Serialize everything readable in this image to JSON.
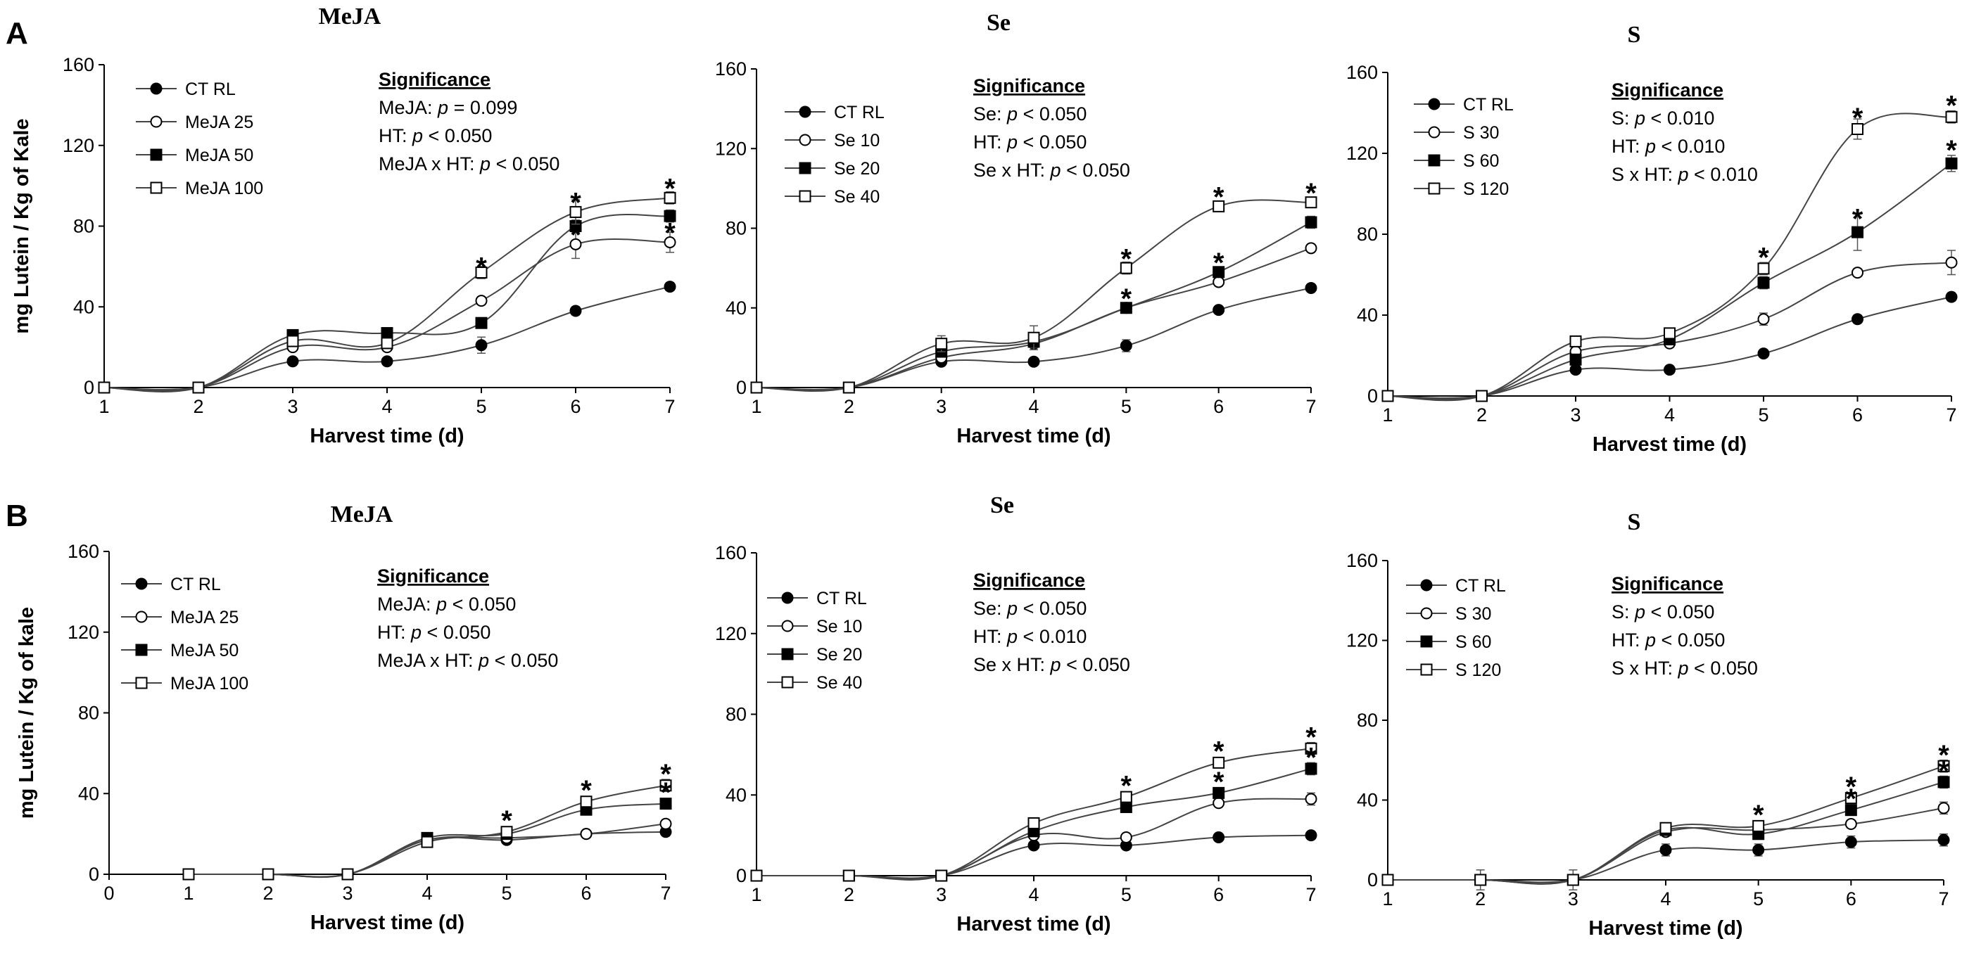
{
  "panel_labels": [
    "A",
    "B"
  ],
  "chart_data": [
    {
      "id": "A-MeJA",
      "type": "line",
      "title": "MeJA",
      "xlabel": "Harvest time (d)",
      "ylabel": "mg Lutein / Kg of Kale",
      "xlim": [
        1,
        7
      ],
      "ylim": [
        0,
        160
      ],
      "xticks": [
        1,
        2,
        3,
        4,
        5,
        6,
        7
      ],
      "yticks": [
        0,
        40,
        80,
        120,
        160
      ],
      "significance": {
        "heading": "Significance",
        "lines": [
          {
            "prefix": "MeJA: ",
            "p": "p",
            "suffix": " = 0.099"
          },
          {
            "prefix": "HT: ",
            "p": "p",
            "suffix": " < 0.050"
          },
          {
            "prefix": "MeJA x HT: ",
            "p": "p",
            "suffix": " < 0.050"
          }
        ]
      },
      "series": [
        {
          "name": "CT RL",
          "marker": "filled-circle",
          "x": [
            1,
            2,
            3,
            4,
            5,
            6,
            7
          ],
          "values": [
            0,
            0,
            13,
            13,
            21,
            38,
            50
          ],
          "errors": [
            0,
            0,
            1,
            1,
            4,
            2,
            2
          ]
        },
        {
          "name": "MeJA 25",
          "marker": "open-circle",
          "x": [
            1,
            2,
            3,
            4,
            5,
            6,
            7
          ],
          "values": [
            0,
            0,
            20,
            20,
            43,
            71,
            72
          ],
          "errors": [
            0,
            0,
            1,
            1,
            2,
            7,
            5
          ]
        },
        {
          "name": "MeJA 50",
          "marker": "filled-square",
          "x": [
            1,
            2,
            3,
            4,
            5,
            6,
            7
          ],
          "values": [
            0,
            0,
            26,
            27,
            32,
            80,
            85
          ],
          "errors": [
            0,
            0,
            1,
            1,
            2,
            3,
            3
          ]
        },
        {
          "name": "MeJA 100",
          "marker": "open-square",
          "x": [
            1,
            2,
            3,
            4,
            5,
            6,
            7
          ],
          "values": [
            0,
            0,
            23,
            22,
            57,
            87,
            94
          ],
          "errors": [
            0,
            0,
            1,
            2,
            3,
            6,
            3
          ]
        }
      ],
      "significance_markers": [
        {
          "x": 5,
          "y": 57,
          "label": "*"
        },
        {
          "x": 6,
          "y": 89,
          "label": "*"
        },
        {
          "x": 6,
          "y": 73,
          "label": "*"
        },
        {
          "x": 7,
          "y": 96,
          "label": "*"
        },
        {
          "x": 7,
          "y": 74,
          "label": "*"
        }
      ]
    },
    {
      "id": "A-Se",
      "type": "line",
      "title": "Se",
      "xlabel": "Harvest time (d)",
      "ylabel": "",
      "xlim": [
        1,
        7
      ],
      "ylim": [
        0,
        160
      ],
      "xticks": [
        1,
        2,
        3,
        4,
        5,
        6,
        7
      ],
      "yticks": [
        0,
        40,
        80,
        120,
        160
      ],
      "significance": {
        "heading": "Significance",
        "lines": [
          {
            "prefix": "Se: ",
            "p": "p",
            "suffix": " < 0.050"
          },
          {
            "prefix": "HT: ",
            "p": "p",
            "suffix": " < 0.050"
          },
          {
            "prefix": "Se x HT: ",
            "p": "p",
            "suffix": " < 0.050"
          }
        ]
      },
      "series": [
        {
          "name": "CT RL",
          "marker": "filled-circle",
          "x": [
            1,
            2,
            3,
            4,
            5,
            6,
            7
          ],
          "values": [
            0,
            0,
            13,
            13,
            21,
            39,
            50
          ],
          "errors": [
            0,
            0,
            1,
            1,
            3,
            1,
            2
          ]
        },
        {
          "name": "Se 10",
          "marker": "open-circle",
          "x": [
            1,
            2,
            3,
            4,
            5,
            6,
            7
          ],
          "values": [
            0,
            0,
            15,
            22,
            40,
            53,
            70
          ],
          "errors": [
            0,
            0,
            2,
            3,
            2,
            2,
            2
          ]
        },
        {
          "name": "Se 20",
          "marker": "filled-square",
          "x": [
            1,
            2,
            3,
            4,
            5,
            6,
            7
          ],
          "values": [
            0,
            0,
            18,
            23,
            40,
            58,
            83
          ],
          "errors": [
            0,
            0,
            2,
            3,
            2,
            2,
            3
          ]
        },
        {
          "name": "Se 40",
          "marker": "open-square",
          "x": [
            1,
            2,
            3,
            4,
            5,
            6,
            7
          ],
          "values": [
            0,
            0,
            22,
            25,
            60,
            91,
            93
          ],
          "errors": [
            0,
            0,
            4,
            6,
            3,
            2,
            2
          ]
        }
      ],
      "significance_markers": [
        {
          "x": 5,
          "y": 62,
          "label": "*"
        },
        {
          "x": 5,
          "y": 42,
          "label": "*"
        },
        {
          "x": 6,
          "y": 93,
          "label": "*"
        },
        {
          "x": 6,
          "y": 60,
          "label": "*"
        },
        {
          "x": 7,
          "y": 95,
          "label": "*"
        }
      ]
    },
    {
      "id": "A-S",
      "type": "line",
      "title": "S",
      "xlabel": "Harvest time (d)",
      "ylabel": "",
      "xlim": [
        1,
        7
      ],
      "ylim": [
        0,
        160
      ],
      "xticks": [
        1,
        2,
        3,
        4,
        5,
        6,
        7
      ],
      "yticks": [
        0,
        40,
        80,
        120,
        160
      ],
      "significance": {
        "heading": "Significance",
        "lines": [
          {
            "prefix": "S: ",
            "p": "p",
            "suffix": " < 0.010"
          },
          {
            "prefix": "HT: ",
            "p": "p",
            "suffix": " < 0.010"
          },
          {
            "prefix": "S x HT: ",
            "p": "p",
            "suffix": " < 0.010"
          }
        ]
      },
      "series": [
        {
          "name": "CT RL",
          "marker": "filled-circle",
          "x": [
            1,
            2,
            3,
            4,
            5,
            6,
            7
          ],
          "values": [
            0,
            0,
            13,
            13,
            21,
            38,
            49
          ],
          "errors": [
            0,
            0,
            1,
            1,
            1,
            2,
            2
          ]
        },
        {
          "name": "S 30",
          "marker": "open-circle",
          "x": [
            1,
            2,
            3,
            4,
            5,
            6,
            7
          ],
          "values": [
            0,
            0,
            22,
            26,
            38,
            61,
            66
          ],
          "errors": [
            0,
            0,
            2,
            2,
            3,
            2,
            6
          ]
        },
        {
          "name": "S 60",
          "marker": "filled-square",
          "x": [
            1,
            2,
            3,
            4,
            5,
            6,
            7
          ],
          "values": [
            0,
            0,
            18,
            28,
            56,
            81,
            115
          ],
          "errors": [
            0,
            0,
            2,
            2,
            3,
            9,
            4
          ]
        },
        {
          "name": "S 120",
          "marker": "open-square",
          "x": [
            1,
            2,
            3,
            4,
            5,
            6,
            7
          ],
          "values": [
            0,
            0,
            27,
            31,
            63,
            132,
            138
          ],
          "errors": [
            0,
            0,
            2,
            2,
            3,
            5,
            3
          ]
        }
      ],
      "significance_markers": [
        {
          "x": 5,
          "y": 66,
          "label": "*"
        },
        {
          "x": 6,
          "y": 135,
          "label": "*"
        },
        {
          "x": 6,
          "y": 85,
          "label": "*"
        },
        {
          "x": 7,
          "y": 141,
          "label": "*"
        },
        {
          "x": 7,
          "y": 119,
          "label": "*"
        }
      ]
    },
    {
      "id": "B-MeJA",
      "type": "line",
      "title": "MeJA",
      "xlabel": "Harvest time (d)",
      "ylabel": "mg Lutein / Kg of kale",
      "xlim": [
        0,
        7
      ],
      "ylim": [
        0,
        160
      ],
      "xticks": [
        0,
        1,
        2,
        3,
        4,
        5,
        6,
        7
      ],
      "yticks": [
        0,
        40,
        80,
        120,
        160
      ],
      "significance": {
        "heading": "Significance",
        "lines": [
          {
            "prefix": "MeJA: ",
            "p": "p",
            "suffix": " < 0.050"
          },
          {
            "prefix": "HT: ",
            "p": "p",
            "suffix": " < 0.050"
          },
          {
            "prefix": "MeJA x HT: ",
            "p": "p",
            "suffix": " < 0.050"
          }
        ]
      },
      "series": [
        {
          "name": "CT RL",
          "marker": "filled-circle",
          "x": [
            1,
            2,
            3,
            4,
            5,
            6,
            7
          ],
          "values": [
            0,
            0,
            0,
            17,
            17,
            20,
            21
          ],
          "errors": [
            0,
            0,
            0,
            1,
            1,
            1,
            2
          ]
        },
        {
          "name": "MeJA 25",
          "marker": "open-circle",
          "x": [
            1,
            2,
            3,
            4,
            5,
            6,
            7
          ],
          "values": [
            0,
            0,
            0,
            17,
            18,
            20,
            25
          ],
          "errors": [
            0,
            0,
            0,
            1,
            1,
            1,
            2
          ]
        },
        {
          "name": "MeJA 50",
          "marker": "filled-square",
          "x": [
            1,
            2,
            3,
            4,
            5,
            6,
            7
          ],
          "values": [
            0,
            0,
            0,
            18,
            20,
            32,
            35
          ],
          "errors": [
            0,
            0,
            0,
            1,
            1,
            2,
            2
          ]
        },
        {
          "name": "MeJA 100",
          "marker": "open-square",
          "x": [
            1,
            2,
            3,
            4,
            5,
            6,
            7
          ],
          "values": [
            0,
            0,
            0,
            16,
            21,
            36,
            44
          ],
          "errors": [
            0,
            0,
            0,
            1,
            1,
            2,
            3
          ]
        }
      ],
      "significance_markers": [
        {
          "x": 5,
          "y": 24,
          "label": "*"
        },
        {
          "x": 6,
          "y": 39,
          "label": "*"
        },
        {
          "x": 7,
          "y": 47,
          "label": "*"
        },
        {
          "x": 7,
          "y": 38,
          "label": "*"
        }
      ]
    },
    {
      "id": "B-Se",
      "type": "line",
      "title": "Se",
      "xlabel": "Harvest time (d)",
      "ylabel": "",
      "xlim": [
        1,
        7
      ],
      "ylim": [
        0,
        160
      ],
      "xticks": [
        1,
        2,
        3,
        4,
        5,
        6,
        7
      ],
      "yticks": [
        0,
        40,
        80,
        120,
        160
      ],
      "significance": {
        "heading": "Significance",
        "lines": [
          {
            "prefix": "Se: ",
            "p": "p",
            "suffix": " < 0.050"
          },
          {
            "prefix": "HT: ",
            "p": "p",
            "suffix": " < 0.010"
          },
          {
            "prefix": "Se x HT: ",
            "p": "p",
            "suffix": " < 0.050"
          }
        ]
      },
      "series": [
        {
          "name": "CT RL",
          "marker": "filled-circle",
          "x": [
            1,
            2,
            3,
            4,
            5,
            6,
            7
          ],
          "values": [
            0,
            0,
            0,
            15,
            15,
            19,
            20
          ],
          "errors": [
            0,
            0,
            0,
            1,
            1,
            1,
            2
          ]
        },
        {
          "name": "Se 10",
          "marker": "open-circle",
          "x": [
            1,
            2,
            3,
            4,
            5,
            6,
            7
          ],
          "values": [
            0,
            0,
            0,
            20,
            19,
            36,
            38
          ],
          "errors": [
            0,
            0,
            0,
            1,
            1,
            2,
            3
          ]
        },
        {
          "name": "Se 20",
          "marker": "filled-square",
          "x": [
            1,
            2,
            3,
            4,
            5,
            6,
            7
          ],
          "values": [
            0,
            0,
            0,
            22,
            34,
            41,
            53
          ],
          "errors": [
            0,
            0,
            0,
            1,
            2,
            2,
            3
          ]
        },
        {
          "name": "Se 40",
          "marker": "open-square",
          "x": [
            1,
            2,
            3,
            4,
            5,
            6,
            7
          ],
          "values": [
            0,
            0,
            0,
            26,
            39,
            56,
            63
          ],
          "errors": [
            0,
            0,
            0,
            1,
            2,
            2,
            3
          ]
        }
      ],
      "significance_markers": [
        {
          "x": 5,
          "y": 42,
          "label": "*"
        },
        {
          "x": 6,
          "y": 59,
          "label": "*"
        },
        {
          "x": 6,
          "y": 44,
          "label": "*"
        },
        {
          "x": 7,
          "y": 66,
          "label": "*"
        },
        {
          "x": 7,
          "y": 56,
          "label": "*"
        }
      ]
    },
    {
      "id": "B-S",
      "type": "line",
      "title": "S",
      "xlabel": "Harvest time (d)",
      "ylabel": "",
      "xlim": [
        1,
        7
      ],
      "ylim": [
        0,
        160
      ],
      "xticks": [
        1,
        2,
        3,
        4,
        5,
        6,
        7
      ],
      "yticks": [
        0,
        40,
        80,
        120,
        160
      ],
      "significance": {
        "heading": "Significance",
        "lines": [
          {
            "prefix": "S: ",
            "p": "p",
            "suffix": " < 0.050"
          },
          {
            "prefix": "HT: ",
            "p": "p",
            "suffix": " < 0.050"
          },
          {
            "prefix": "S x HT: ",
            "p": "p",
            "suffix": " < 0.050"
          }
        ]
      },
      "series": [
        {
          "name": "CT RL",
          "marker": "filled-circle",
          "x": [
            1,
            2,
            3,
            4,
            5,
            6,
            7
          ],
          "values": [
            0,
            0,
            0,
            15,
            15,
            19,
            20
          ],
          "errors": [
            0,
            5,
            5,
            3,
            3,
            3,
            3
          ]
        },
        {
          "name": "S 30",
          "marker": "open-circle",
          "x": [
            1,
            2,
            3,
            4,
            5,
            6,
            7
          ],
          "values": [
            0,
            0,
            0,
            24,
            25,
            28,
            36
          ],
          "errors": [
            0,
            0,
            0,
            2,
            2,
            2,
            3
          ]
        },
        {
          "name": "S 60",
          "marker": "filled-square",
          "x": [
            1,
            2,
            3,
            4,
            5,
            6,
            7
          ],
          "values": [
            0,
            0,
            0,
            25,
            23,
            35,
            49
          ],
          "errors": [
            0,
            0,
            0,
            2,
            2,
            2,
            3
          ]
        },
        {
          "name": "S 120",
          "marker": "open-square",
          "x": [
            1,
            2,
            3,
            4,
            5,
            6,
            7
          ],
          "values": [
            0,
            0,
            0,
            26,
            27,
            41,
            57
          ],
          "errors": [
            0,
            0,
            0,
            2,
            2,
            2,
            3
          ]
        }
      ],
      "significance_markers": [
        {
          "x": 5,
          "y": 30,
          "label": "*"
        },
        {
          "x": 6,
          "y": 44,
          "label": "*"
        },
        {
          "x": 6,
          "y": 38,
          "label": "*"
        },
        {
          "x": 7,
          "y": 60,
          "label": "*"
        },
        {
          "x": 7,
          "y": 52,
          "label": "*"
        }
      ]
    }
  ]
}
